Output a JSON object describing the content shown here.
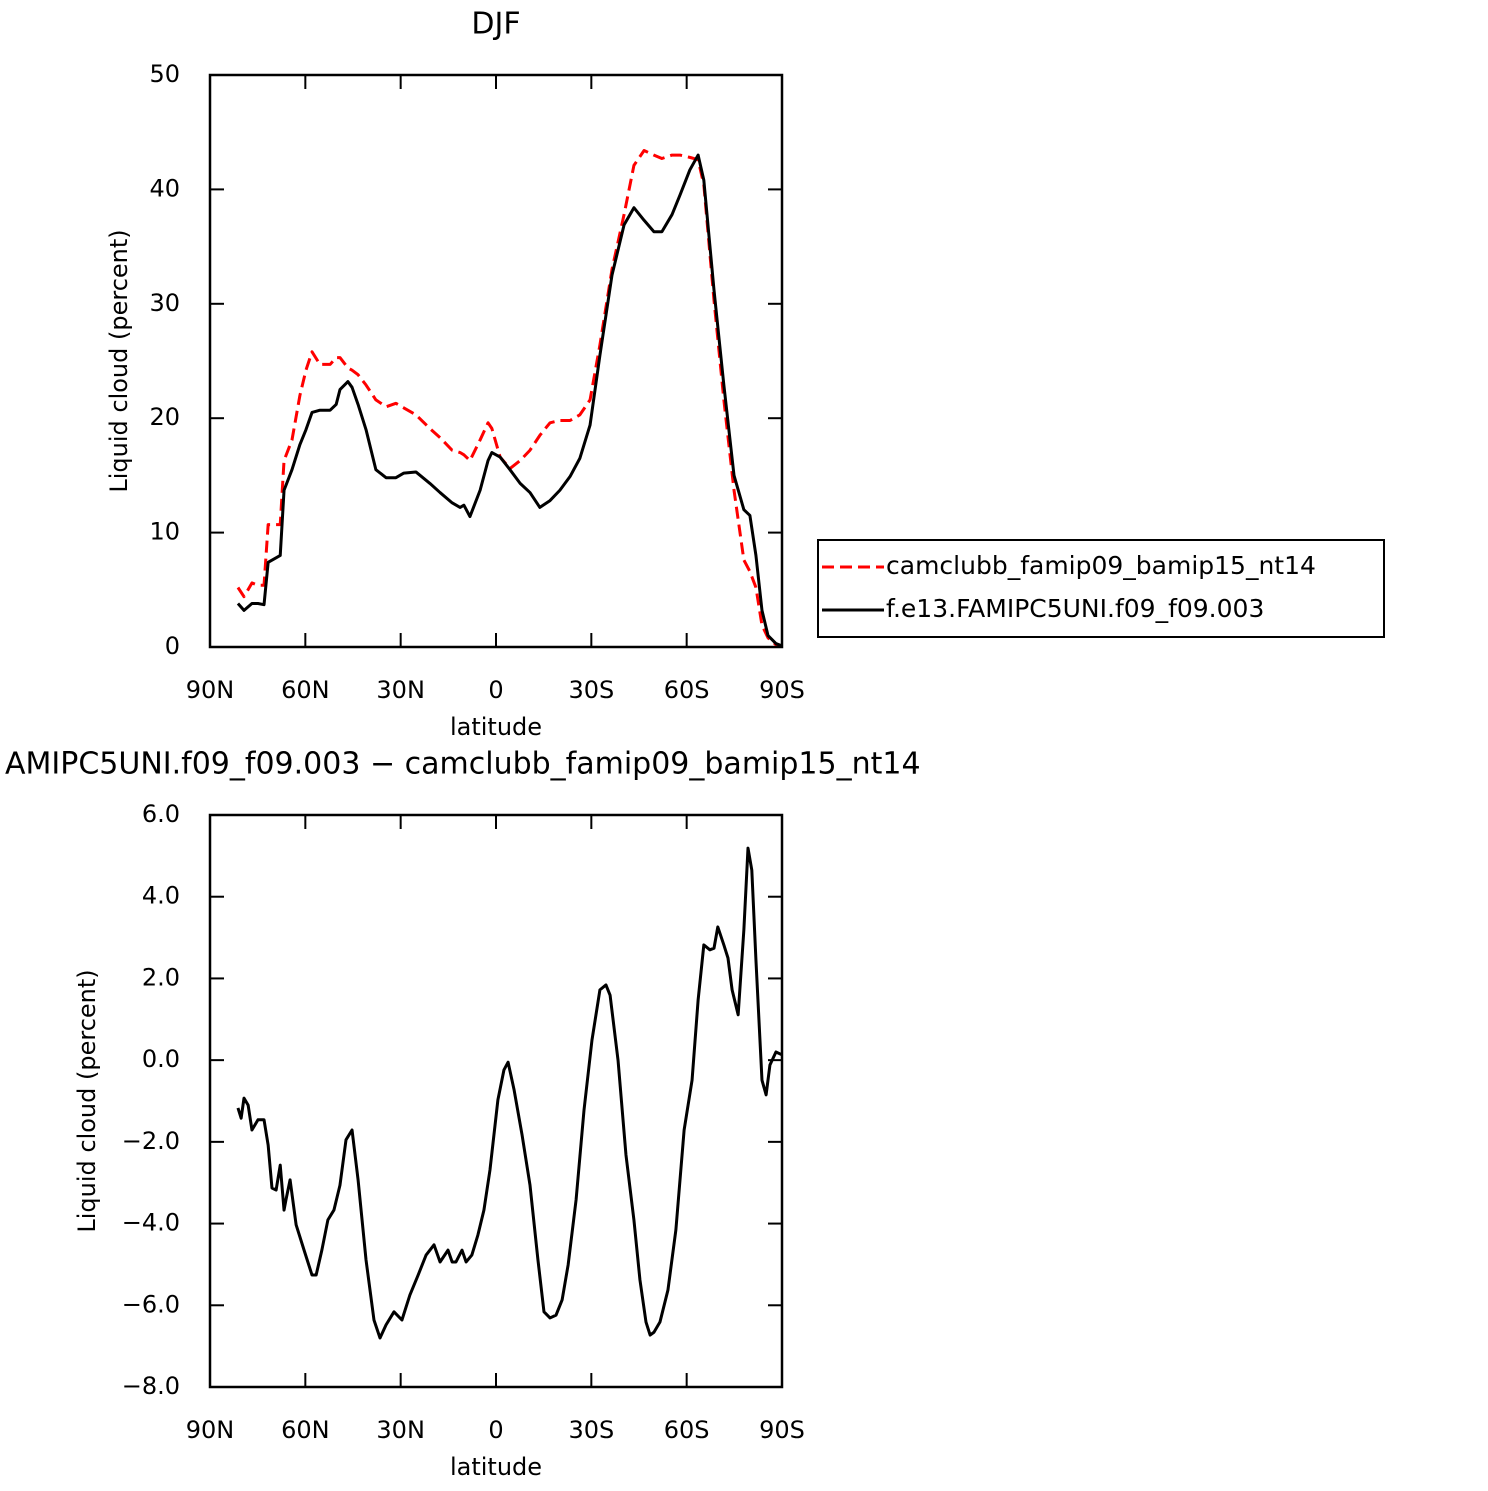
{
  "chart_data": [
    {
      "type": "line",
      "title": "DJF",
      "xlabel": "latitude",
      "ylabel": "Liquid cloud (percent)",
      "xlim": [
        90,
        -90
      ],
      "ylim": [
        0,
        50
      ],
      "xticks": [
        {
          "value": 90,
          "label": "90N"
        },
        {
          "value": 60,
          "label": "60N"
        },
        {
          "value": 30,
          "label": "30N"
        },
        0,
        {
          "value": -30,
          "label": "30S"
        },
        {
          "value": -60,
          "label": "60S"
        },
        {
          "value": -90,
          "label": "90S"
        }
      ],
      "yticks": [
        0,
        10,
        20,
        30,
        40,
        50
      ],
      "legend": "right",
      "x": [
        81.2,
        79.3,
        76.8,
        74.9,
        73.0,
        71.7,
        69.2,
        67.9,
        66.7,
        64.2,
        61.7,
        59.8,
        57.9,
        55.4,
        52.2,
        50.3,
        49.1,
        46.6,
        45.3,
        43.4,
        40.9,
        37.8,
        34.6,
        31.5,
        29.0,
        25.2,
        20.8,
        17.6,
        13.8,
        11.3,
        10.1,
        8.2,
        5.0,
        2.5,
        1.3,
        -1.3,
        -4.4,
        -7.6,
        -10.7,
        -13.8,
        -17.0,
        -20.1,
        -23.3,
        -26.4,
        -29.6,
        -32.7,
        -36.5,
        -40.3,
        -43.4,
        -46.6,
        -49.7,
        -52.2,
        -55.4,
        -57.9,
        -61.0,
        -63.6,
        -65.4,
        -68.6,
        -71.7,
        -74.9,
        -78.0,
        -79.9,
        -81.8,
        -83.7,
        -85.6,
        -88.1,
        -90.0
      ],
      "series": [
        {
          "name": "camclubb_famip09_bamip15_nt14",
          "color": "#ff0000",
          "linestyle": "dashed",
          "values": [
            5.2,
            4.4,
            5.6,
            5.4,
            5.4,
            10.7,
            10.7,
            10.7,
            16.3,
            18.1,
            22.0,
            24.2,
            25.8,
            24.7,
            24.7,
            25.3,
            25.3,
            24.4,
            24.2,
            23.8,
            22.9,
            21.6,
            21.0,
            21.3,
            20.9,
            20.3,
            19.1,
            18.3,
            17.2,
            17.0,
            16.8,
            16.3,
            18.1,
            19.6,
            19.1,
            16.6,
            15.6,
            16.3,
            17.2,
            18.5,
            19.6,
            19.8,
            19.8,
            20.3,
            21.6,
            26.4,
            33.0,
            37.8,
            42.1,
            43.4,
            43.0,
            42.7,
            43.0,
            43.0,
            42.8,
            42.6,
            40.4,
            30.3,
            21.6,
            13.7,
            7.6,
            6.6,
            5.2,
            1.9,
            0.8,
            0.2,
            0.1
          ]
        },
        {
          "name": "f.e13.FAMIPC5UNI.f09_f09.003",
          "color": "#000000",
          "linestyle": "solid",
          "values": [
            3.8,
            3.2,
            3.8,
            3.8,
            3.7,
            7.4,
            7.8,
            8.0,
            13.7,
            15.5,
            17.7,
            19.0,
            20.5,
            20.7,
            20.7,
            21.2,
            22.5,
            23.2,
            22.7,
            21.2,
            19.0,
            15.5,
            14.8,
            14.8,
            15.2,
            15.3,
            14.3,
            13.5,
            12.6,
            12.2,
            12.4,
            11.4,
            13.7,
            16.3,
            17.0,
            16.6,
            15.5,
            14.3,
            13.5,
            12.2,
            12.8,
            13.7,
            14.9,
            16.5,
            19.4,
            25.5,
            32.5,
            36.9,
            38.4,
            37.3,
            36.3,
            36.3,
            37.8,
            39.5,
            41.7,
            43.0,
            40.8,
            31.2,
            22.9,
            15.0,
            12.0,
            11.5,
            8.0,
            3.2,
            1.0,
            0.3,
            0.1
          ]
        }
      ]
    },
    {
      "type": "line",
      "title": "AMIPC5UNI.f09_f09.003 − camclubb_famip09_bamip15_nt14",
      "xlabel": "latitude",
      "ylabel": "Liquid cloud (percent)",
      "xlim": [
        90,
        -90
      ],
      "ylim": [
        -8,
        6
      ],
      "xticks": [
        {
          "value": 90,
          "label": "90N"
        },
        {
          "value": 60,
          "label": "60N"
        },
        {
          "value": 30,
          "label": "30N"
        },
        0,
        {
          "value": -30,
          "label": "30S"
        },
        {
          "value": -60,
          "label": "60S"
        },
        {
          "value": -90,
          "label": "90S"
        }
      ],
      "yticks": [
        {
          "value": -8,
          "label": "−8.0"
        },
        {
          "value": -6,
          "label": "−6.0"
        },
        {
          "value": -4,
          "label": "−4.0"
        },
        {
          "value": -2,
          "label": "−2.0"
        },
        {
          "value": 0,
          "label": "0.0"
        },
        {
          "value": 2,
          "label": "2.0"
        },
        {
          "value": 4,
          "label": "4.0"
        },
        {
          "value": 6,
          "label": "6.0"
        }
      ],
      "x": [
        81.2,
        80.2,
        79.3,
        78.0,
        76.8,
        74.9,
        73.0,
        71.7,
        70.5,
        69.2,
        67.9,
        66.7,
        66.1,
        64.8,
        62.9,
        60.4,
        57.9,
        56.6,
        54.8,
        52.9,
        51.0,
        49.1,
        47.2,
        45.3,
        43.4,
        40.9,
        38.4,
        36.5,
        34.6,
        32.1,
        29.6,
        27.1,
        24.5,
        22.0,
        19.5,
        17.6,
        15.1,
        13.8,
        12.6,
        10.7,
        9.4,
        7.6,
        5.7,
        3.8,
        1.9,
        -0.6,
        -2.5,
        -3.8,
        -5.7,
        -8.2,
        -10.7,
        -13.2,
        -15.1,
        -17.0,
        -18.9,
        -20.8,
        -22.7,
        -25.2,
        -27.7,
        -30.2,
        -32.7,
        -34.6,
        -35.9,
        -38.4,
        -40.9,
        -43.4,
        -45.3,
        -47.2,
        -48.5,
        -49.7,
        -51.6,
        -54.1,
        -56.6,
        -59.2,
        -61.7,
        -63.6,
        -65.4,
        -67.3,
        -68.6,
        -69.8,
        -71.7,
        -73.0,
        -74.3,
        -76.2,
        -78.0,
        -79.3,
        -80.5,
        -81.8,
        -83.7,
        -85.0,
        -86.2,
        -88.1,
        -90.0
      ],
      "series": [
        {
          "color": "#000000",
          "linestyle": "solid",
          "values": [
            -1.17,
            -1.42,
            -0.93,
            -1.1,
            -1.71,
            -1.46,
            -1.46,
            -2.08,
            -3.13,
            -3.18,
            -2.57,
            -3.67,
            -3.42,
            -2.93,
            -4.03,
            -4.65,
            -5.26,
            -5.26,
            -4.65,
            -3.91,
            -3.67,
            -3.06,
            -1.95,
            -1.71,
            -2.93,
            -4.89,
            -6.36,
            -6.8,
            -6.48,
            -6.16,
            -6.36,
            -5.75,
            -5.26,
            -4.77,
            -4.52,
            -4.94,
            -4.65,
            -4.94,
            -4.94,
            -4.65,
            -4.94,
            -4.77,
            -4.28,
            -3.67,
            -2.69,
            -0.97,
            -0.24,
            -0.05,
            -0.73,
            -1.83,
            -3.06,
            -4.89,
            -6.16,
            -6.31,
            -6.24,
            -5.87,
            -5.01,
            -3.42,
            -1.22,
            0.49,
            1.72,
            1.84,
            1.59,
            0.0,
            -2.32,
            -3.91,
            -5.38,
            -6.41,
            -6.73,
            -6.66,
            -6.41,
            -5.63,
            -4.16,
            -1.71,
            -0.49,
            1.47,
            2.82,
            2.7,
            2.74,
            3.26,
            2.82,
            2.5,
            1.72,
            1.11,
            3.19,
            5.19,
            4.65,
            2.45,
            -0.49,
            -0.85,
            -0.12,
            0.2,
            0.13
          ]
        }
      ]
    }
  ]
}
